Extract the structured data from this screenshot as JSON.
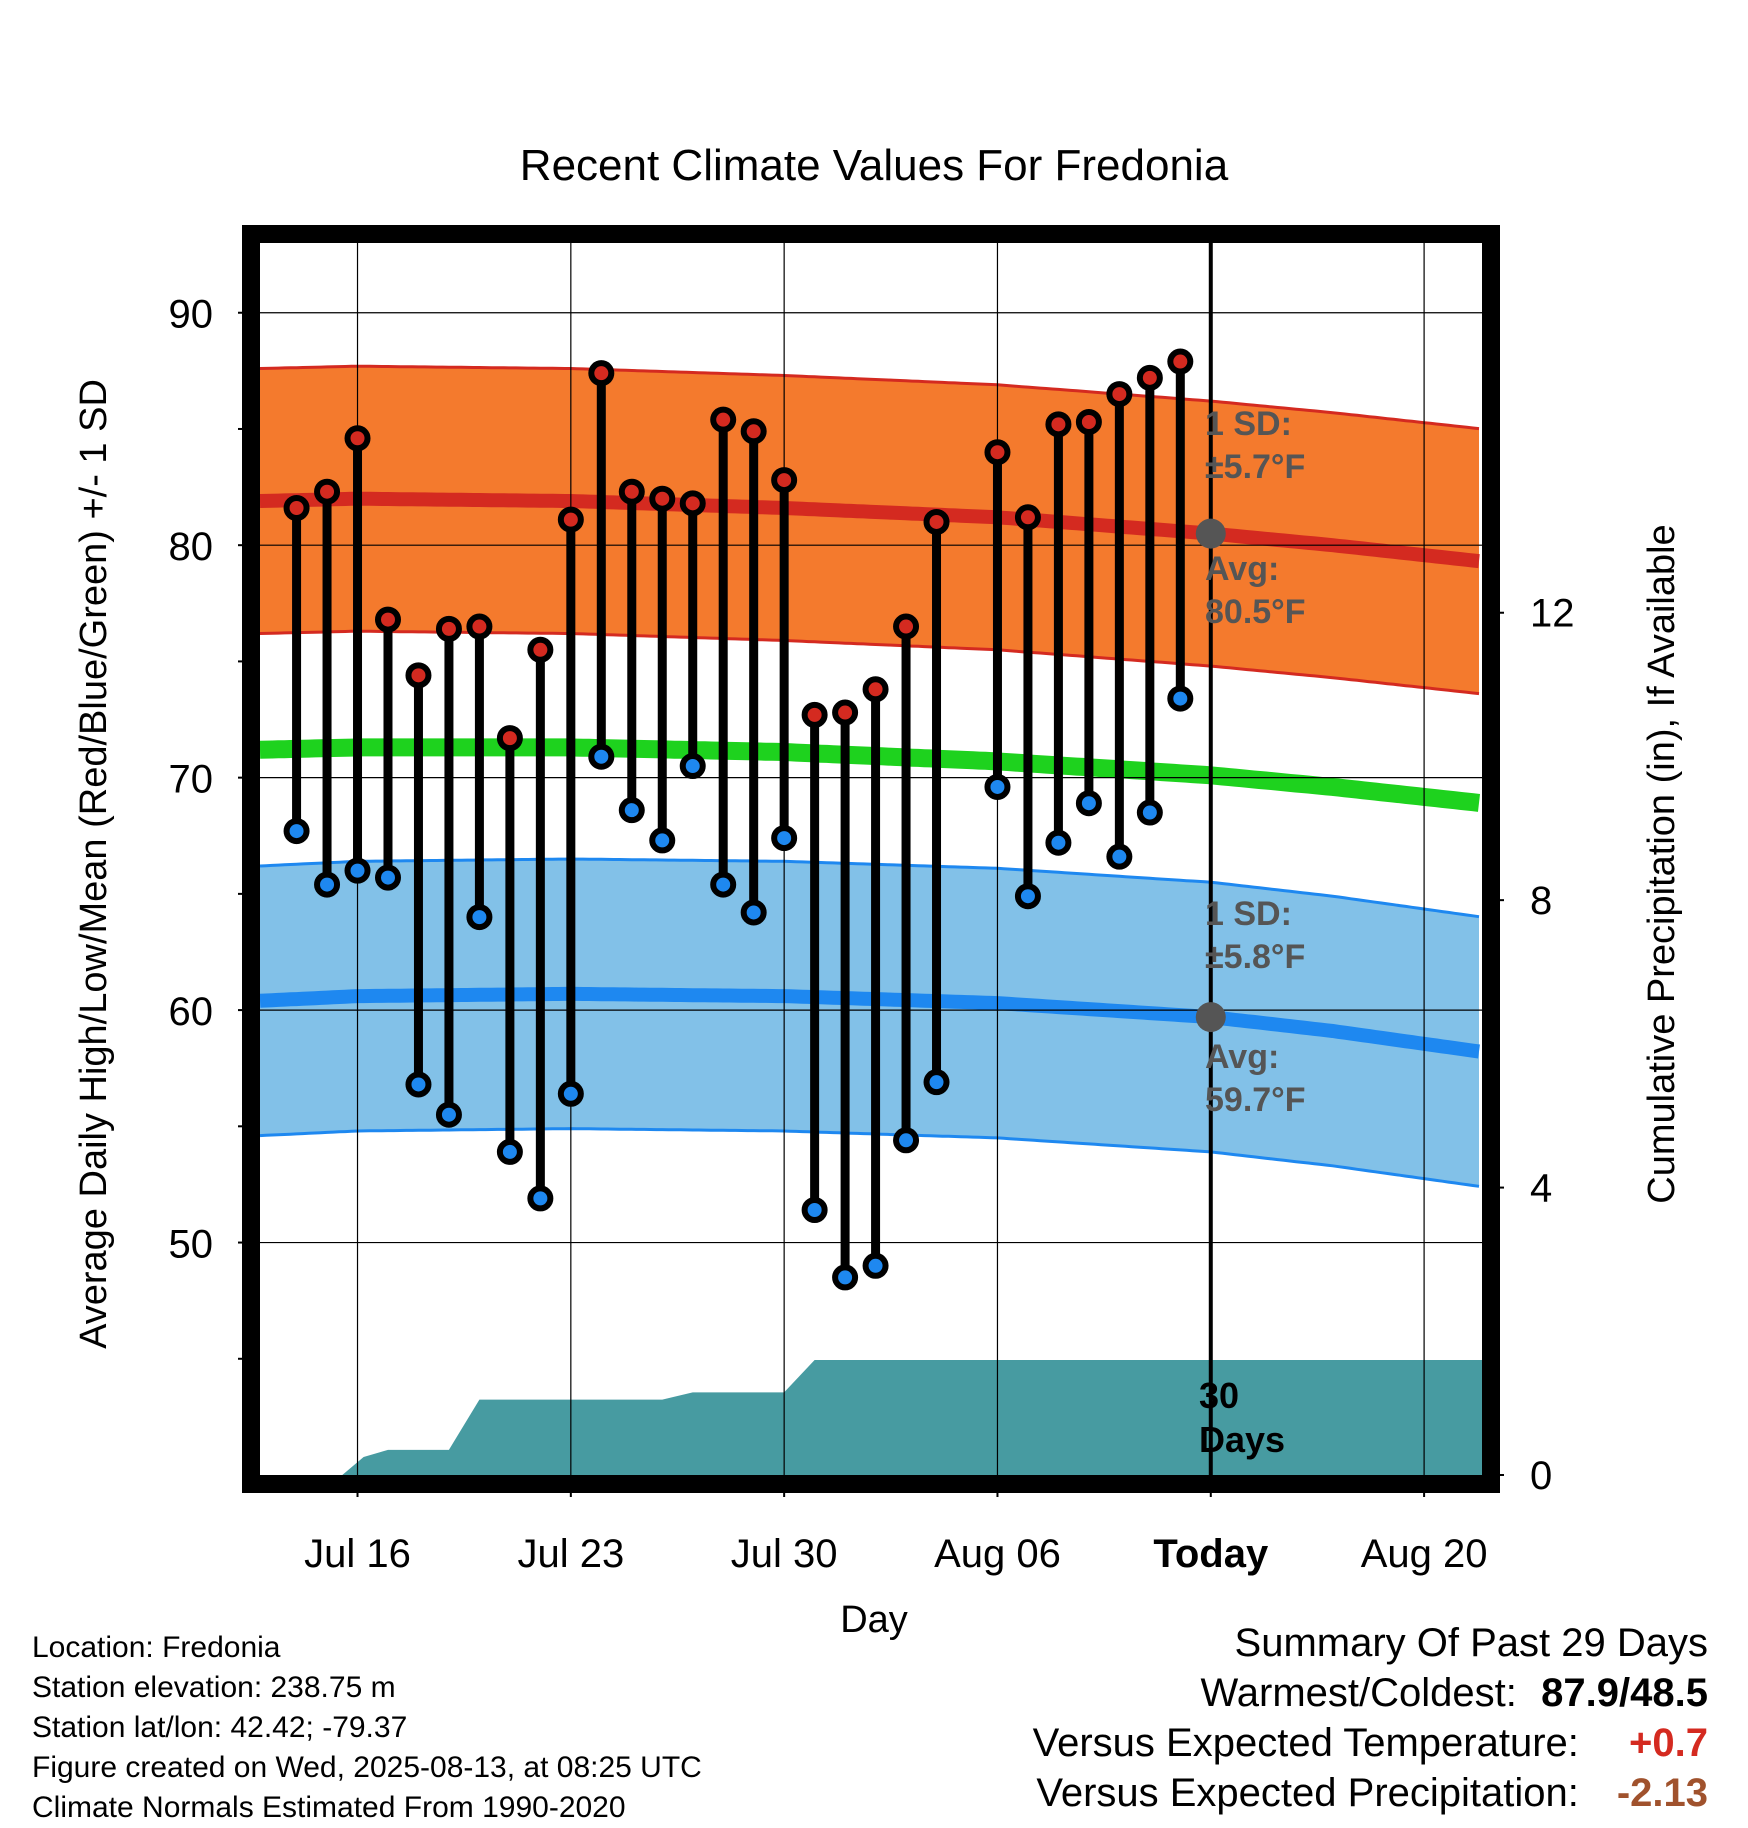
{
  "chart_data": {
    "type": "range-dot",
    "title": "Recent Climate Values For Fredonia",
    "xlabel": "Day",
    "ylabel_left": "Average Daily High/Low/Mean (Red/Blue/Green) +/- 1 SD",
    "ylabel_right": "Cumulative Precipitation (in), If Available",
    "x_tick_labels": [
      "Jul 16",
      "Jul 23",
      "Jul 30",
      "Aug 06",
      "Today",
      "Aug 20"
    ],
    "x_tick_days": [
      16,
      23,
      30,
      37,
      44,
      51
    ],
    "day_range": [
      12.8,
      52.9
    ],
    "today_day": 44,
    "ylim": [
      40,
      93
    ],
    "y_ticks": [
      50,
      60,
      70,
      80,
      90
    ],
    "precip_ticks": [
      0,
      4,
      8,
      12
    ],
    "precip_per_temp_unit": 0.3235,
    "highs": [
      {
        "day": 14,
        "value": 81.6
      },
      {
        "day": 15,
        "value": 82.3
      },
      {
        "day": 16,
        "value": 84.6
      },
      {
        "day": 17,
        "value": 76.8
      },
      {
        "day": 18,
        "value": 74.4
      },
      {
        "day": 19,
        "value": 76.4
      },
      {
        "day": 20,
        "value": 76.5
      },
      {
        "day": 21,
        "value": 71.7
      },
      {
        "day": 22,
        "value": 75.5
      },
      {
        "day": 23,
        "value": 81.1
      },
      {
        "day": 24,
        "value": 87.4
      },
      {
        "day": 25,
        "value": 82.3
      },
      {
        "day": 26,
        "value": 82.0
      },
      {
        "day": 27,
        "value": 81.8
      },
      {
        "day": 28,
        "value": 85.4
      },
      {
        "day": 29,
        "value": 84.9
      },
      {
        "day": 30,
        "value": 82.8
      },
      {
        "day": 31,
        "value": 72.7
      },
      {
        "day": 32,
        "value": 72.8
      },
      {
        "day": 33,
        "value": 73.8
      },
      {
        "day": 34,
        "value": 76.5
      },
      {
        "day": 35,
        "value": 81.0
      },
      {
        "day": 37,
        "value": 84.0
      },
      {
        "day": 38,
        "value": 81.2
      },
      {
        "day": 39,
        "value": 85.2
      },
      {
        "day": 40,
        "value": 85.3
      },
      {
        "day": 41,
        "value": 86.5
      },
      {
        "day": 42,
        "value": 87.2
      },
      {
        "day": 43,
        "value": 87.9
      }
    ],
    "lows": [
      {
        "day": 14,
        "value": 67.7
      },
      {
        "day": 15,
        "value": 65.4
      },
      {
        "day": 16,
        "value": 66.0
      },
      {
        "day": 17,
        "value": 65.7
      },
      {
        "day": 18,
        "value": 56.8
      },
      {
        "day": 19,
        "value": 55.5
      },
      {
        "day": 20,
        "value": 64.0
      },
      {
        "day": 21,
        "value": 53.9
      },
      {
        "day": 22,
        "value": 51.9
      },
      {
        "day": 23,
        "value": 56.4
      },
      {
        "day": 24,
        "value": 70.9
      },
      {
        "day": 25,
        "value": 68.6
      },
      {
        "day": 26,
        "value": 67.3
      },
      {
        "day": 27,
        "value": 70.5
      },
      {
        "day": 28,
        "value": 65.4
      },
      {
        "day": 29,
        "value": 64.2
      },
      {
        "day": 30,
        "value": 67.4
      },
      {
        "day": 31,
        "value": 51.4
      },
      {
        "day": 32,
        "value": 48.5
      },
      {
        "day": 33,
        "value": 49.0
      },
      {
        "day": 34,
        "value": 54.4
      },
      {
        "day": 35,
        "value": 56.9
      },
      {
        "day": 37,
        "value": 69.6
      },
      {
        "day": 38,
        "value": 64.9
      },
      {
        "day": 39,
        "value": 67.2
      },
      {
        "day": 40,
        "value": 68.9
      },
      {
        "day": 41,
        "value": 66.6
      },
      {
        "day": 42,
        "value": 68.5
      },
      {
        "day": 43,
        "value": 73.4
      }
    ],
    "normal_high": {
      "days": [
        12.8,
        16,
        23,
        30,
        37,
        44,
        48,
        52.9
      ],
      "values": [
        81.9,
        82.0,
        81.9,
        81.6,
        81.2,
        80.5,
        80.0,
        79.3
      ]
    },
    "normal_high_sd": 5.7,
    "normal_low": {
      "days": [
        12.8,
        16,
        23,
        30,
        37,
        44,
        48,
        52.9
      ],
      "values": [
        60.4,
        60.6,
        60.7,
        60.6,
        60.3,
        59.7,
        59.1,
        58.2
      ]
    },
    "normal_low_sd": 5.8,
    "normal_mean": {
      "days": [
        12.8,
        16,
        23,
        30,
        37,
        44,
        48,
        52.9
      ],
      "values": [
        71.2,
        71.3,
        71.3,
        71.1,
        70.7,
        70.1,
        69.6,
        68.9
      ]
    },
    "precip_cumulative": {
      "days": [
        12.8,
        15.5,
        16.2,
        17,
        18,
        19,
        20,
        23,
        26,
        27,
        30,
        31,
        44,
        52.9
      ],
      "values": [
        0,
        0,
        0.25,
        0.35,
        0.35,
        0.35,
        1.05,
        1.05,
        1.05,
        1.15,
        1.15,
        1.6,
        1.6,
        1.6
      ]
    },
    "colors": {
      "high_band": "#f47a2d",
      "high_band_edge": "#d42a20",
      "high_line": "#d42a20",
      "low_band": "#82c1e8",
      "low_band_edge": "#1e88f0",
      "low_line": "#1e88f0",
      "mean_line": "#1ed21e",
      "precip_fill": "#479ba1",
      "high_dot": "#d42a20",
      "low_dot": "#1e88f0",
      "annotation": "#555555"
    }
  },
  "annotations": {
    "high_sd_label": "1 SD:",
    "high_sd_value": "±5.7°F",
    "high_avg_label": "Avg:",
    "high_avg_value": "80.5°F",
    "low_sd_label": "1 SD:",
    "low_sd_value": "±5.8°F",
    "low_avg_label": "Avg:",
    "low_avg_value": "59.7°F",
    "window_days_number": "30",
    "window_days_word": "Days"
  },
  "footer": {
    "location": "Location: Fredonia",
    "elevation": "Station elevation: 238.75 m",
    "latlon": "Station lat/lon: 42.42; -79.37",
    "created": "Figure created on Wed, 2025-08-13, at 08:25 UTC",
    "normals": "Climate Normals Estimated From 1990-2020"
  },
  "summary": {
    "heading": "Summary Of Past 29 Days",
    "warm_cold_label": "Warmest/Coldest:",
    "warm_cold_value": "87.9/48.5",
    "temp_label": "Versus Expected Temperature:",
    "temp_value": "+0.7",
    "temp_color": "#d42a20",
    "precip_label": "Versus Expected Precipitation:",
    "precip_value": "-2.13",
    "precip_color": "#a0522d"
  }
}
